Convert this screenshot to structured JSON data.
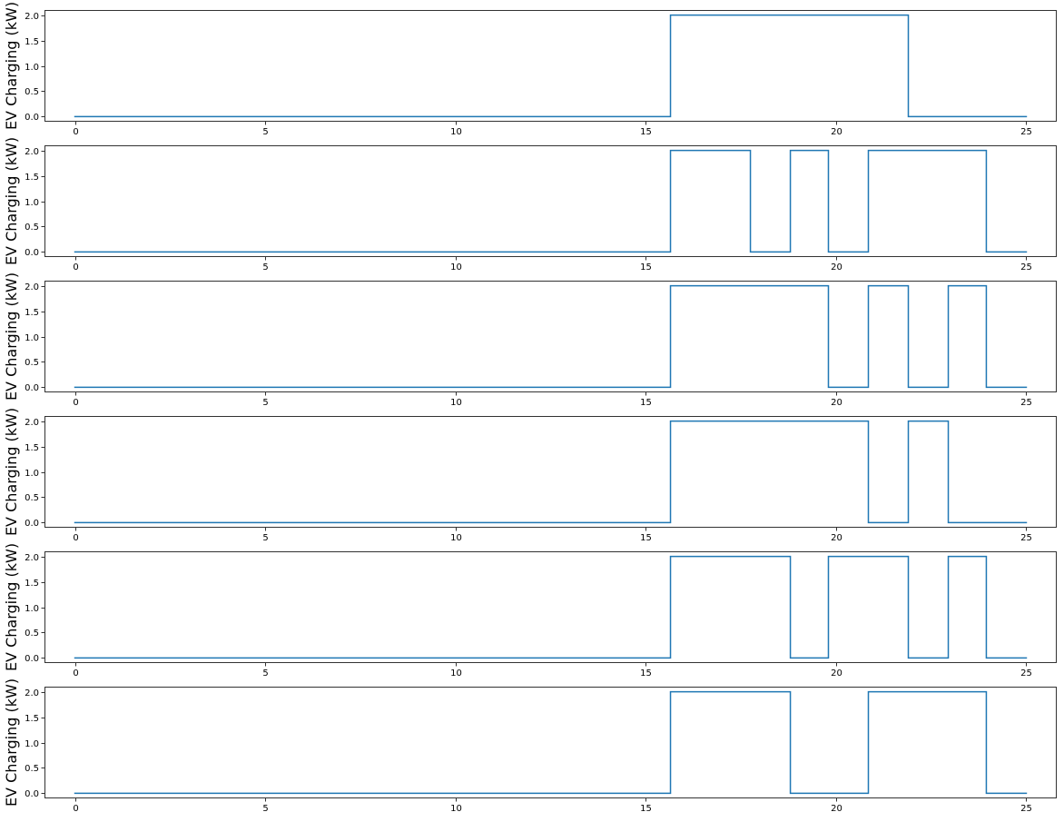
{
  "chart_data": [
    {
      "type": "line",
      "drawstyle": "steps-post",
      "ylabel": "EV Charging (kW)",
      "xlim": [
        -0.8,
        25.8
      ],
      "ylim": [
        -0.1,
        2.1
      ],
      "xticks": [
        0,
        5,
        10,
        15,
        20,
        25
      ],
      "xtick_labels": [
        "0",
        "5",
        "10",
        "15",
        "20",
        "25"
      ],
      "yticks": [
        0.0,
        0.5,
        1.0,
        1.5,
        2.0
      ],
      "ytick_labels": [
        "0.0",
        "0.5",
        "1.0",
        "1.5",
        "2.0"
      ],
      "color": "#1f77b4",
      "grid": false,
      "x": [
        0,
        15.65,
        21.9,
        25
      ],
      "y": [
        0,
        2,
        0,
        0
      ]
    },
    {
      "type": "line",
      "drawstyle": "steps-post",
      "ylabel": "EV Charging (kW)",
      "xlim": [
        -0.8,
        25.8
      ],
      "ylim": [
        -0.1,
        2.1
      ],
      "xticks": [
        0,
        5,
        10,
        15,
        20,
        25
      ],
      "xtick_labels": [
        "0",
        "5",
        "10",
        "15",
        "20",
        "25"
      ],
      "yticks": [
        0.0,
        0.5,
        1.0,
        1.5,
        2.0
      ],
      "ytick_labels": [
        "0.0",
        "0.5",
        "1.0",
        "1.5",
        "2.0"
      ],
      "color": "#1f77b4",
      "grid": false,
      "x": [
        0,
        15.65,
        17.75,
        18.8,
        19.8,
        20.85,
        23.95,
        25
      ],
      "y": [
        0,
        2,
        0,
        2,
        0,
        2,
        0,
        0
      ]
    },
    {
      "type": "line",
      "drawstyle": "steps-post",
      "ylabel": "EV Charging (kW)",
      "xlim": [
        -0.8,
        25.8
      ],
      "ylim": [
        -0.1,
        2.1
      ],
      "xticks": [
        0,
        5,
        10,
        15,
        20,
        25
      ],
      "xtick_labels": [
        "0",
        "5",
        "10",
        "15",
        "20",
        "25"
      ],
      "yticks": [
        0.0,
        0.5,
        1.0,
        1.5,
        2.0
      ],
      "ytick_labels": [
        "0.0",
        "0.5",
        "1.0",
        "1.5",
        "2.0"
      ],
      "color": "#1f77b4",
      "grid": false,
      "x": [
        0,
        15.65,
        19.8,
        20.85,
        21.9,
        22.95,
        23.95,
        25
      ],
      "y": [
        0,
        2,
        0,
        2,
        0,
        2,
        0,
        0
      ]
    },
    {
      "type": "line",
      "drawstyle": "steps-post",
      "ylabel": "EV Charging (kW)",
      "xlim": [
        -0.8,
        25.8
      ],
      "ylim": [
        -0.1,
        2.1
      ],
      "xticks": [
        0,
        5,
        10,
        15,
        20,
        25
      ],
      "xtick_labels": [
        "0",
        "5",
        "10",
        "15",
        "20",
        "25"
      ],
      "yticks": [
        0.0,
        0.5,
        1.0,
        1.5,
        2.0
      ],
      "ytick_labels": [
        "0.0",
        "0.5",
        "1.0",
        "1.5",
        "2.0"
      ],
      "color": "#1f77b4",
      "grid": false,
      "x": [
        0,
        15.65,
        20.85,
        21.9,
        22.95,
        25
      ],
      "y": [
        0,
        2,
        0,
        2,
        0,
        0
      ]
    },
    {
      "type": "line",
      "drawstyle": "steps-post",
      "ylabel": "EV Charging (kW)",
      "xlim": [
        -0.8,
        25.8
      ],
      "ylim": [
        -0.1,
        2.1
      ],
      "xticks": [
        0,
        5,
        10,
        15,
        20,
        25
      ],
      "xtick_labels": [
        "0",
        "5",
        "10",
        "15",
        "20",
        "25"
      ],
      "yticks": [
        0.0,
        0.5,
        1.0,
        1.5,
        2.0
      ],
      "ytick_labels": [
        "0.0",
        "0.5",
        "1.0",
        "1.5",
        "2.0"
      ],
      "color": "#1f77b4",
      "grid": false,
      "x": [
        0,
        15.65,
        18.8,
        19.8,
        21.9,
        22.95,
        23.95,
        25
      ],
      "y": [
        0,
        2,
        0,
        2,
        0,
        2,
        0,
        0
      ]
    },
    {
      "type": "line",
      "drawstyle": "steps-post",
      "ylabel": "EV Charging (kW)",
      "xlim": [
        -0.8,
        25.8
      ],
      "ylim": [
        -0.1,
        2.1
      ],
      "xticks": [
        0,
        5,
        10,
        15,
        20,
        25
      ],
      "xtick_labels": [
        "0",
        "5",
        "10",
        "15",
        "20",
        "25"
      ],
      "yticks": [
        0.0,
        0.5,
        1.0,
        1.5,
        2.0
      ],
      "ytick_labels": [
        "0.0",
        "0.5",
        "1.0",
        "1.5",
        "2.0"
      ],
      "color": "#1f77b4",
      "grid": false,
      "x": [
        0,
        15.65,
        18.8,
        20.85,
        23.95,
        25
      ],
      "y": [
        0,
        2,
        0,
        2,
        0,
        0
      ]
    }
  ]
}
